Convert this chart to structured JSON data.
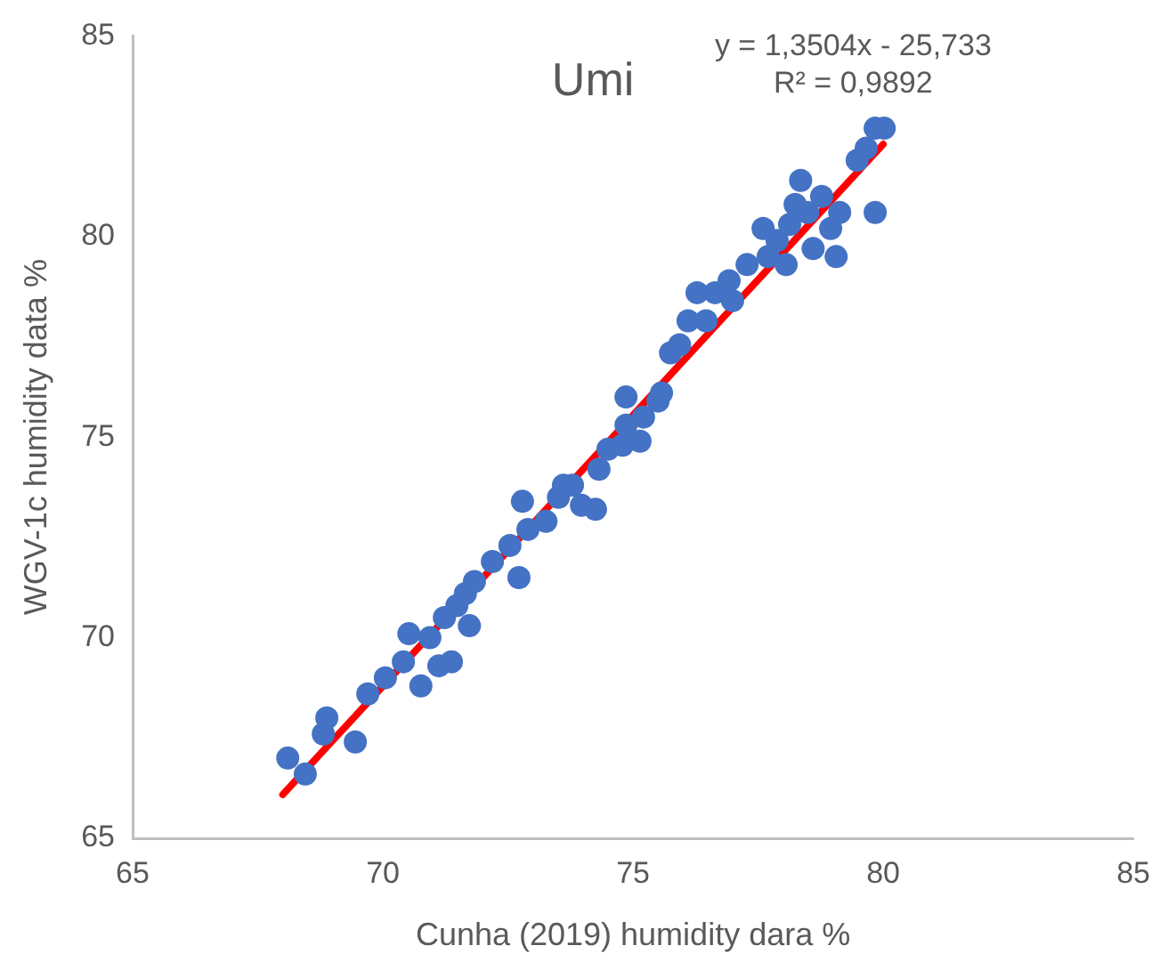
{
  "chart_data": {
    "type": "scatter",
    "title": "Umi",
    "xlabel": "Cunha (2019) humidity dara %",
    "ylabel": "WGV-1c humidity data %",
    "annotations": [
      "y = 1,3504x - 25,733",
      "R² = 0,9892"
    ],
    "xlim": [
      65,
      85
    ],
    "xticks": [
      65,
      70,
      75,
      80,
      85
    ],
    "ylim": [
      65,
      85
    ],
    "yticks": [
      65,
      70,
      75,
      80,
      85
    ],
    "grid": false,
    "legend": false,
    "marker": "circle",
    "series": [
      {
        "color": "#4472c4",
        "x": [
          68.1,
          68.45,
          68.88,
          68.81,
          69.45,
          69.7,
          70.05,
          70.41,
          70.52,
          70.94,
          70.76,
          71.12,
          71.23,
          71.37,
          71.48,
          71.65,
          71.83,
          71.73,
          72.19,
          72.54,
          72.72,
          72.9,
          72.79,
          73.26,
          73.51,
          73.79,
          73.97,
          73.61,
          74.32,
          74.25,
          74.5,
          74.79,
          74.86,
          74.86,
          75.21,
          75.5,
          75.14,
          75.57,
          75.75,
          75.93,
          76.1,
          76.28,
          76.46,
          76.64,
          76.92,
          76.99,
          77.28,
          77.6,
          77.88,
          77.7,
          78.06,
          78.13,
          78.24,
          78.35,
          78.49,
          78.6,
          78.95,
          79.06,
          79.13,
          78.77,
          79.48,
          79.66,
          79.84,
          80.02,
          79.84
        ],
        "values": [
          67.0,
          66.6,
          68.0,
          67.6,
          67.4,
          68.6,
          69.0,
          69.4,
          70.1,
          70.0,
          68.8,
          69.3,
          70.5,
          69.4,
          70.8,
          71.1,
          71.4,
          70.3,
          71.9,
          72.3,
          71.5,
          72.7,
          73.4,
          72.9,
          73.5,
          73.8,
          73.3,
          73.8,
          74.2,
          73.2,
          74.7,
          74.8,
          76.0,
          75.3,
          75.5,
          75.9,
          74.9,
          76.1,
          77.1,
          77.3,
          77.9,
          78.6,
          77.9,
          78.6,
          78.9,
          78.4,
          79.3,
          80.2,
          79.9,
          79.5,
          79.3,
          80.3,
          80.8,
          81.4,
          80.6,
          79.7,
          80.2,
          79.5,
          80.6,
          81.0,
          81.9,
          82.2,
          82.7,
          82.7,
          80.6
        ]
      },
      {
        "type": "line",
        "color": "#ff0000",
        "marker": "none",
        "x": [
          68,
          80
        ],
        "values": [
          66.09,
          82.3
        ]
      }
    ]
  }
}
